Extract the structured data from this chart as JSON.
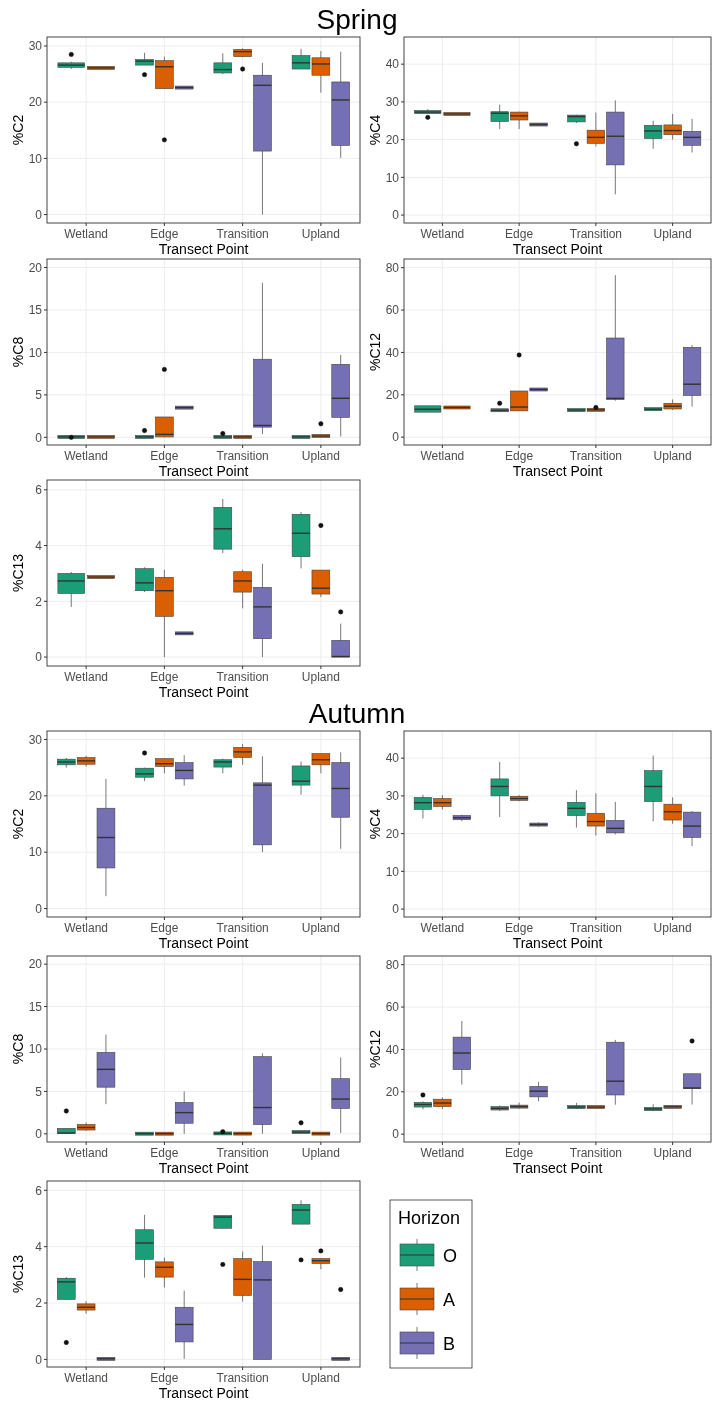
{
  "chart_data": [
    {
      "type": "box",
      "title": "Spring",
      "xlabel": "Transect Point",
      "ylabel": "%C2",
      "categories": [
        "Wetland",
        "Edge",
        "Transition",
        "Upland"
      ],
      "ylim": [
        -1.5,
        31.6
      ],
      "yticks": [
        0,
        10,
        20,
        30
      ],
      "grid": true,
      "series": [
        {
          "color": "#1b9e77",
          "boxes": [
            {
              "low": 25.9,
              "q1": 26.2,
              "median": 26.6,
              "q3": 27.0,
              "high": 27.2,
              "outliers": [
                28.5
              ]
            },
            {
              "low": 26.6,
              "q1": 26.6,
              "median": 27.3,
              "q3": 27.6,
              "high": 28.8,
              "outliers": [
                24.9
              ]
            },
            {
              "low": 25.0,
              "q1": 25.2,
              "median": 25.8,
              "q3": 27.0,
              "high": 28.7
            },
            {
              "low": 25.9,
              "q1": 25.9,
              "median": 27.0,
              "q3": 28.3,
              "high": 29.5
            }
          ]
        },
        {
          "color": "#d95f02",
          "boxes": [
            {
              "low": 26.1,
              "q1": 26.1,
              "median": 26.1,
              "q3": 26.1,
              "high": 26.1
            },
            {
              "low": 22.4,
              "q1": 22.4,
              "median": 26.3,
              "q3": 27.4,
              "high": 28.1,
              "outliers": [
                13.3
              ]
            },
            {
              "low": 28.0,
              "q1": 28.1,
              "median": 29.0,
              "q3": 29.4,
              "high": 29.6,
              "outliers": [
                25.9
              ]
            },
            {
              "low": 21.7,
              "q1": 24.8,
              "median": 26.8,
              "q3": 27.9,
              "high": 29.1
            }
          ]
        },
        {
          "color": "#7570b3",
          "boxes": [
            null,
            {
              "low": 22.6,
              "q1": 22.6,
              "median": 22.6,
              "q3": 22.6,
              "high": 22.6
            },
            {
              "low": 0,
              "q1": 11.3,
              "median": 23.0,
              "q3": 24.8,
              "high": 27.0
            },
            {
              "low": 10.1,
              "q1": 12.3,
              "median": 20.4,
              "q3": 23.6,
              "high": 29.0
            }
          ]
        }
      ]
    },
    {
      "type": "box",
      "xlabel": "Transect Point",
      "ylabel": "%C4",
      "categories": [
        "Wetland",
        "Edge",
        "Transition",
        "Upland"
      ],
      "ylim": [
        -2.1,
        47.2
      ],
      "yticks": [
        0,
        10,
        20,
        30,
        40
      ],
      "grid": true,
      "series": [
        {
          "color": "#1b9e77",
          "boxes": [
            {
              "low": 27.0,
              "q1": 27.0,
              "median": 27.3,
              "q3": 27.6,
              "high": 28.1,
              "outliers": [
                25.9
              ]
            },
            {
              "low": 22.8,
              "q1": 24.5,
              "median": 27.0,
              "q3": 27.1,
              "high": 29.3
            },
            {
              "low": 24.4,
              "q1": 24.4,
              "median": 26.1,
              "q3": 26.2,
              "high": 26.6,
              "outliers": [
                18.9
              ]
            },
            {
              "low": 17.6,
              "q1": 20.3,
              "median": 22.3,
              "q3": 23.8,
              "high": 25.0
            }
          ]
        },
        {
          "color": "#d95f02",
          "boxes": [
            {
              "low": 26.8,
              "q1": 26.8,
              "median": 26.8,
              "q3": 26.8,
              "high": 26.8
            },
            {
              "low": 22.8,
              "q1": 25.2,
              "median": 26.3,
              "q3": 27.3,
              "high": 27.4
            },
            {
              "low": 18.2,
              "q1": 19.0,
              "median": 20.6,
              "q3": 22.5,
              "high": 27.2
            },
            {
              "low": 20.0,
              "q1": 21.3,
              "median": 22.4,
              "q3": 23.9,
              "high": 26.8
            }
          ]
        },
        {
          "color": "#7570b3",
          "boxes": [
            null,
            {
              "low": 24.0,
              "q1": 24.0,
              "median": 24.0,
              "q3": 24.0,
              "high": 24.0
            },
            {
              "low": 5.5,
              "q1": 13.3,
              "median": 20.9,
              "q3": 27.3,
              "high": 30.4
            },
            {
              "low": 16.6,
              "q1": 18.5,
              "median": 20.6,
              "q3": 22.2,
              "high": 25.5
            }
          ]
        }
      ]
    },
    {
      "type": "box",
      "xlabel": "Transect Point",
      "ylabel": "%C8",
      "categories": [
        "Wetland",
        "Edge",
        "Transition",
        "Upland"
      ],
      "ylim": [
        -0.9,
        21
      ],
      "yticks": [
        0,
        5,
        10,
        15,
        20
      ],
      "grid": true,
      "series": [
        {
          "color": "#1b9e77",
          "boxes": [
            {
              "low": 0.05,
              "q1": 0.05,
              "median": 0.05,
              "q3": 0.05,
              "high": 0.05,
              "outliers": [
                0
              ]
            },
            {
              "low": 0.05,
              "q1": 0.05,
              "median": 0.05,
              "q3": 0.05,
              "high": 0.05,
              "outliers": [
                0.8
              ]
            },
            {
              "low": 0.05,
              "q1": 0.05,
              "median": 0.05,
              "q3": 0.05,
              "high": 0.05,
              "outliers": [
                0.45
              ]
            },
            {
              "low": 0.05,
              "q1": 0.05,
              "median": 0.05,
              "q3": 0.05,
              "high": 0.05
            }
          ]
        },
        {
          "color": "#d95f02",
          "boxes": [
            {
              "low": 0.05,
              "q1": 0.05,
              "median": 0.05,
              "q3": 0.05,
              "high": 0.05
            },
            {
              "low": 0,
              "q1": 0.05,
              "median": 0.35,
              "q3": 2.4,
              "high": 2.4,
              "outliers": [
                8.0
              ]
            },
            {
              "low": 0.05,
              "q1": 0.05,
              "median": 0.05,
              "q3": 0.05,
              "high": 0.05
            },
            {
              "low": 0,
              "q1": 0.05,
              "median": 0.15,
              "q3": 0.35,
              "high": 0.35,
              "outliers": [
                1.6
              ]
            }
          ]
        },
        {
          "color": "#7570b3",
          "boxes": [
            null,
            {
              "low": 3.5,
              "q1": 3.5,
              "median": 3.5,
              "q3": 3.5,
              "high": 3.5
            },
            {
              "low": 0.4,
              "q1": 1.2,
              "median": 1.4,
              "q3": 9.2,
              "high": 18.2
            },
            {
              "low": 0.1,
              "q1": 2.35,
              "median": 4.6,
              "q3": 8.6,
              "high": 9.7
            }
          ]
        }
      ]
    },
    {
      "type": "box",
      "xlabel": "Transect Point",
      "ylabel": "%C12",
      "categories": [
        "Wetland",
        "Edge",
        "Transition",
        "Upland"
      ],
      "ylim": [
        -3.7,
        84.1
      ],
      "yticks": [
        0,
        20,
        40,
        60,
        80
      ],
      "grid": true,
      "series": [
        {
          "color": "#1b9e77",
          "boxes": [
            {
              "low": 11.8,
              "q1": 11.8,
              "median": 13.2,
              "q3": 14.8,
              "high": 14.8
            },
            {
              "low": 11.8,
              "q1": 12.0,
              "median": 12.7,
              "q3": 13.2,
              "high": 13.2,
              "outliers": [
                16.0
              ]
            },
            {
              "low": 12.8,
              "q1": 12.8,
              "median": 12.8,
              "q3": 12.8,
              "high": 12.8
            },
            {
              "low": 13.0,
              "q1": 13.0,
              "median": 13.2,
              "q3": 13.5,
              "high": 13.5
            }
          ]
        },
        {
          "color": "#d95f02",
          "boxes": [
            {
              "low": 14.0,
              "q1": 14.0,
              "median": 14.0,
              "q3": 14.0,
              "high": 14.0
            },
            {
              "low": 12.4,
              "q1": 12.4,
              "median": 14.2,
              "q3": 21.8,
              "high": 21.8,
              "outliers": [
                38.8
              ]
            },
            {
              "low": 12.6,
              "q1": 12.7,
              "median": 12.9,
              "q3": 13.1,
              "high": 13.2,
              "outliers": [
                14.0
              ]
            },
            {
              "low": 12.8,
              "q1": 13.3,
              "median": 14.6,
              "q3": 16.0,
              "high": 17.8
            }
          ]
        },
        {
          "color": "#7570b3",
          "boxes": [
            null,
            {
              "low": 22.5,
              "q1": 22.5,
              "median": 22.5,
              "q3": 22.5,
              "high": 22.5
            },
            {
              "low": 17.2,
              "q1": 17.8,
              "median": 18.3,
              "q3": 46.8,
              "high": 76.5
            },
            {
              "low": 14.4,
              "q1": 19.7,
              "median": 25.0,
              "q3": 42.4,
              "high": 43.5
            }
          ]
        }
      ]
    },
    {
      "type": "box",
      "xlabel": "Transect Point",
      "ylabel": "%C13",
      "categories": [
        "Wetland",
        "Edge",
        "Transition",
        "Upland"
      ],
      "ylim": [
        -0.32,
        6.35
      ],
      "yticks": [
        0,
        2,
        4,
        6
      ],
      "grid": true,
      "series": [
        {
          "color": "#1b9e77",
          "boxes": [
            {
              "low": 1.8,
              "q1": 2.28,
              "median": 2.73,
              "q3": 3.0,
              "high": 3.05
            },
            {
              "low": 2.33,
              "q1": 2.38,
              "median": 2.66,
              "q3": 3.17,
              "high": 3.22
            },
            {
              "low": 3.73,
              "q1": 3.87,
              "median": 4.6,
              "q3": 5.37,
              "high": 5.67
            },
            {
              "low": 3.18,
              "q1": 3.6,
              "median": 4.44,
              "q3": 5.12,
              "high": 5.2
            }
          ]
        },
        {
          "color": "#d95f02",
          "boxes": [
            {
              "low": 2.87,
              "q1": 2.87,
              "median": 2.87,
              "q3": 2.87,
              "high": 2.87
            },
            {
              "low": 0,
              "q1": 1.46,
              "median": 2.38,
              "q3": 2.86,
              "high": 3.13
            },
            {
              "low": 1.75,
              "q1": 2.33,
              "median": 2.73,
              "q3": 3.06,
              "high": 3.13
            },
            {
              "low": 2.15,
              "q1": 2.26,
              "median": 2.47,
              "q3": 3.12,
              "high": 3.12,
              "outliers": [
                4.72
              ]
            }
          ]
        },
        {
          "color": "#7570b3",
          "boxes": [
            null,
            {
              "low": 0.85,
              "q1": 0.85,
              "median": 0.85,
              "q3": 0.85,
              "high": 0.85
            },
            {
              "low": 0,
              "q1": 0.66,
              "median": 1.8,
              "q3": 2.5,
              "high": 3.35
            },
            {
              "low": 0,
              "q1": 0,
              "median": 0.02,
              "q3": 0.6,
              "high": 1.2,
              "outliers": [
                1.62
              ]
            }
          ]
        }
      ]
    },
    {
      "type": "box",
      "title": "Autumn",
      "xlabel": "Transect Point",
      "ylabel": "%C2",
      "categories": [
        "Wetland",
        "Edge",
        "Transition",
        "Upland"
      ],
      "ylim": [
        -1.5,
        31.5
      ],
      "yticks": [
        0,
        10,
        20,
        30
      ],
      "grid": true,
      "series": [
        {
          "color": "#1b9e77",
          "boxes": [
            {
              "low": 25.0,
              "q1": 25.5,
              "median": 26.0,
              "q3": 26.5,
              "high": 26.7
            },
            {
              "low": 22.6,
              "q1": 23.3,
              "median": 23.9,
              "q3": 24.9,
              "high": 25.0,
              "outliers": [
                27.6
              ]
            },
            {
              "low": 24.0,
              "q1": 25.1,
              "median": 26.0,
              "q3": 26.4,
              "high": 26.6
            },
            {
              "low": 20.2,
              "q1": 21.9,
              "median": 22.6,
              "q3": 25.3,
              "high": 26.1
            }
          ]
        },
        {
          "color": "#d95f02",
          "boxes": [
            {
              "low": 25.2,
              "q1": 25.6,
              "median": 26.2,
              "q3": 26.8,
              "high": 27.1
            },
            {
              "low": 24.0,
              "q1": 25.2,
              "median": 25.7,
              "q3": 26.6,
              "high": 26.6
            },
            {
              "low": 25.5,
              "q1": 26.8,
              "median": 27.8,
              "q3": 28.6,
              "high": 29.2
            },
            {
              "low": 24.0,
              "q1": 25.5,
              "median": 26.4,
              "q3": 27.5,
              "high": 27.5
            }
          ]
        },
        {
          "color": "#7570b3",
          "boxes": [
            {
              "low": 2.2,
              "q1": 7.2,
              "median": 12.6,
              "q3": 17.8,
              "high": 23.0
            },
            {
              "low": 21.8,
              "q1": 23.0,
              "median": 24.5,
              "q3": 25.9,
              "high": 27.2
            },
            {
              "low": 10.0,
              "q1": 11.3,
              "median": 21.9,
              "q3": 22.3,
              "high": 27.0
            },
            {
              "low": 10.6,
              "q1": 16.2,
              "median": 21.3,
              "q3": 25.9,
              "high": 27.7
            }
          ]
        }
      ]
    },
    {
      "type": "box",
      "xlabel": "Transect Point",
      "ylabel": "%C4",
      "categories": [
        "Wetland",
        "Edge",
        "Transition",
        "Upland"
      ],
      "ylim": [
        -2.1,
        47.2
      ],
      "yticks": [
        0,
        10,
        20,
        30,
        40
      ],
      "grid": true,
      "series": [
        {
          "color": "#1b9e77",
          "boxes": [
            {
              "low": 24.0,
              "q1": 26.4,
              "median": 28.2,
              "q3": 29.6,
              "high": 30.3
            },
            {
              "low": 24.4,
              "q1": 30.0,
              "median": 32.5,
              "q3": 34.5,
              "high": 39.0
            },
            {
              "low": 21.6,
              "q1": 24.8,
              "median": 26.7,
              "q3": 28.3,
              "high": 31.5
            },
            {
              "low": 23.3,
              "q1": 28.5,
              "median": 32.5,
              "q3": 36.7,
              "high": 40.7
            }
          ]
        },
        {
          "color": "#d95f02",
          "boxes": [
            {
              "low": 26.4,
              "q1": 27.2,
              "median": 28.2,
              "q3": 29.3,
              "high": 30.2
            },
            {
              "low": 28.6,
              "q1": 28.8,
              "median": 29.3,
              "q3": 29.9,
              "high": 30.2
            },
            {
              "low": 19.5,
              "q1": 22.0,
              "median": 23.2,
              "q3": 25.4,
              "high": 30.7
            },
            {
              "low": 22.6,
              "q1": 23.6,
              "median": 25.8,
              "q3": 27.8,
              "high": 29.6
            }
          ]
        },
        {
          "color": "#7570b3",
          "boxes": [
            {
              "low": 23.3,
              "q1": 23.7,
              "median": 24.2,
              "q3": 24.8,
              "high": 25.0
            },
            {
              "low": 21.8,
              "q1": 22.0,
              "median": 22.4,
              "q3": 22.8,
              "high": 23.0
            },
            {
              "low": 19.8,
              "q1": 20.2,
              "median": 21.4,
              "q3": 23.5,
              "high": 28.4
            },
            {
              "low": 16.7,
              "q1": 19.0,
              "median": 22.0,
              "q3": 25.7,
              "high": 26.0
            }
          ]
        }
      ]
    },
    {
      "type": "box",
      "xlabel": "Transect Point",
      "ylabel": "%C8",
      "categories": [
        "Wetland",
        "Edge",
        "Transition",
        "Upland"
      ],
      "ylim": [
        -0.96,
        20.96
      ],
      "yticks": [
        0,
        5,
        10,
        15,
        20
      ],
      "grid": true,
      "series": [
        {
          "color": "#1b9e77",
          "boxes": [
            {
              "low": 0,
              "q1": 0.05,
              "median": 0.1,
              "q3": 0.65,
              "high": 0.65,
              "outliers": [
                2.7
              ]
            },
            {
              "low": 0.02,
              "q1": 0.02,
              "median": 0.02,
              "q3": 0.02,
              "high": 0.02
            },
            {
              "low": 0.05,
              "q1": 0.05,
              "median": 0.05,
              "q3": 0.05,
              "high": 0.05,
              "outliers": [
                0.25
              ]
            },
            {
              "low": 0.05,
              "q1": 0.1,
              "median": 0.2,
              "q3": 0.4,
              "high": 0.4,
              "outliers": [
                1.3
              ]
            }
          ]
        },
        {
          "color": "#d95f02",
          "boxes": [
            {
              "low": 0.35,
              "q1": 0.45,
              "median": 0.75,
              "q3": 1.1,
              "high": 1.35
            },
            {
              "low": 0.02,
              "q1": 0.02,
              "median": 0.02,
              "q3": 0.02,
              "high": 0.02
            },
            {
              "low": 0.03,
              "q1": 0.03,
              "median": 0.03,
              "q3": 0.03,
              "high": 0.03
            },
            {
              "low": 0.03,
              "q1": 0.03,
              "median": 0.03,
              "q3": 0.03,
              "high": 0.03
            }
          ]
        },
        {
          "color": "#7570b3",
          "boxes": [
            {
              "low": 3.5,
              "q1": 5.5,
              "median": 7.6,
              "q3": 9.6,
              "high": 11.7
            },
            {
              "low": 0,
              "q1": 1.25,
              "median": 2.5,
              "q3": 3.7,
              "high": 5.0
            },
            {
              "low": 0,
              "q1": 1.1,
              "median": 3.1,
              "q3": 9.1,
              "high": 9.5
            },
            {
              "low": 0.1,
              "q1": 3.0,
              "median": 4.1,
              "q3": 6.5,
              "high": 9.0
            }
          ]
        }
      ]
    },
    {
      "type": "box",
      "xlabel": "Transect Point",
      "ylabel": "%C12",
      "categories": [
        "Wetland",
        "Edge",
        "Transition",
        "Upland"
      ],
      "ylim": [
        -3.7,
        84.1
      ],
      "yticks": [
        0,
        20,
        40,
        60,
        80
      ],
      "grid": true,
      "series": [
        {
          "color": "#1b9e77",
          "boxes": [
            {
              "low": 11.7,
              "q1": 12.8,
              "median": 14.0,
              "q3": 15.0,
              "high": 15.5,
              "outliers": [
                18.5
              ]
            },
            {
              "low": 10.9,
              "q1": 11.4,
              "median": 12.2,
              "q3": 13.0,
              "high": 13.5
            },
            {
              "low": 11.9,
              "q1": 12.2,
              "median": 12.8,
              "q3": 13.4,
              "high": 14.8
            },
            {
              "low": 10.9,
              "q1": 11.1,
              "median": 11.9,
              "q3": 12.6,
              "high": 14.1
            }
          ]
        },
        {
          "color": "#d95f02",
          "boxes": [
            {
              "low": 11.9,
              "q1": 13.0,
              "median": 14.7,
              "q3": 16.5,
              "high": 17.4
            },
            {
              "low": 12.0,
              "q1": 12.3,
              "median": 13.0,
              "q3": 13.6,
              "high": 14.9
            },
            {
              "low": 12.6,
              "q1": 12.7,
              "median": 12.8,
              "q3": 13.0,
              "high": 13.1
            },
            {
              "low": 12.6,
              "q1": 12.7,
              "median": 12.9,
              "q3": 13.0,
              "high": 13.1
            }
          ]
        },
        {
          "color": "#7570b3",
          "boxes": [
            {
              "low": 23.4,
              "q1": 30.5,
              "median": 38.3,
              "q3": 45.8,
              "high": 53.4
            },
            {
              "low": 15.5,
              "q1": 17.6,
              "median": 20.3,
              "q3": 22.5,
              "high": 24.7
            },
            {
              "low": 13.9,
              "q1": 18.5,
              "median": 25.0,
              "q3": 43.4,
              "high": 44.5
            },
            {
              "low": 14.0,
              "q1": 21.5,
              "median": 21.8,
              "q3": 28.5,
              "high": 28.7,
              "outliers": [
                44
              ]
            }
          ]
        }
      ]
    },
    {
      "type": "box",
      "xlabel": "Transect Point",
      "ylabel": "%C13",
      "categories": [
        "Wetland",
        "Edge",
        "Transition",
        "Upland"
      ],
      "ylim": [
        -0.27,
        6.33
      ],
      "yticks": [
        0,
        2,
        4,
        6
      ],
      "grid": true,
      "legend": "right",
      "legend_title": "Horizon",
      "series": [
        {
          "name": "O",
          "color": "#1b9e77",
          "boxes": [
            {
              "low": 2.13,
              "q1": 2.13,
              "median": 2.75,
              "q3": 2.88,
              "high": 2.92,
              "outliers": [
                0.6
              ]
            },
            {
              "low": 2.9,
              "q1": 3.55,
              "median": 4.13,
              "q3": 4.6,
              "high": 5.13
            },
            {
              "low": 4.65,
              "q1": 4.65,
              "median": 5.05,
              "q3": 5.1,
              "high": 5.1,
              "outliers": [
                3.37
              ]
            },
            {
              "low": 4.8,
              "q1": 4.8,
              "median": 5.3,
              "q3": 5.5,
              "high": 5.65,
              "outliers": [
                3.53
              ]
            }
          ]
        },
        {
          "name": "A",
          "color": "#d95f02",
          "boxes": [
            {
              "low": 1.62,
              "q1": 1.75,
              "median": 1.85,
              "q3": 1.97,
              "high": 2.06
            },
            {
              "low": 2.55,
              "q1": 2.92,
              "median": 3.27,
              "q3": 3.46,
              "high": 3.61
            },
            {
              "low": 2.05,
              "q1": 2.27,
              "median": 2.84,
              "q3": 3.58,
              "high": 3.83
            },
            {
              "low": 3.2,
              "q1": 3.4,
              "median": 3.5,
              "q3": 3.58,
              "high": 3.58,
              "outliers": [
                3.85
              ]
            }
          ]
        },
        {
          "name": "B",
          "color": "#7570b3",
          "boxes": [
            {
              "low": 0.02,
              "q1": 0.02,
              "median": 0.02,
              "q3": 0.02,
              "high": 0.02
            },
            {
              "low": 0.02,
              "q1": 0.62,
              "median": 1.24,
              "q3": 1.85,
              "high": 2.44
            },
            {
              "low": 0,
              "q1": 0,
              "median": 2.82,
              "q3": 3.47,
              "high": 4.04
            },
            {
              "low": 0.02,
              "q1": 0.02,
              "median": 0.02,
              "q3": 0.02,
              "high": 0.02,
              "outliers": [
                2.48
              ]
            }
          ]
        }
      ]
    }
  ]
}
